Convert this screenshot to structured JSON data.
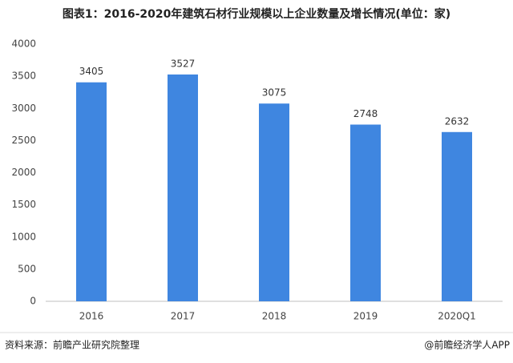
{
  "chart_data": {
    "type": "bar",
    "title": "图表1：2016-2020年建筑石材行业规模以上企业数量及增长情况(单位：家)",
    "categories": [
      "2016",
      "2017",
      "2018",
      "2019",
      "2020Q1"
    ],
    "values": [
      3405,
      3527,
      3075,
      2748,
      2632
    ],
    "color": "#3f86e0",
    "ylim": [
      0,
      4000
    ],
    "yticks": [
      0,
      500,
      1000,
      1500,
      2000,
      2500,
      3000,
      3500,
      4000
    ],
    "grid": false
  },
  "footer": {
    "source": "资料来源：前瞻产业研究院整理",
    "credit": "@前瞻经济学人APP"
  }
}
